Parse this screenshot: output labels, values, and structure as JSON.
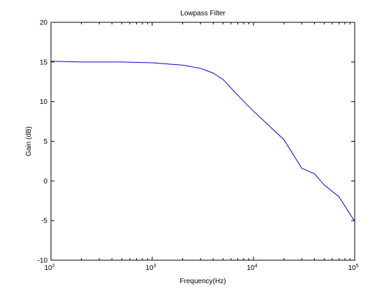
{
  "chart_data": {
    "type": "line",
    "title": "Lowpass Filter",
    "xlabel": "Frequency(Hz)",
    "ylabel": "Gain (dB)",
    "xscale": "log",
    "xlim": [
      100,
      100000
    ],
    "ylim": [
      -10,
      20
    ],
    "grid": false,
    "x_ticks": [
      {
        "value": 100,
        "base": "10",
        "exp": "2"
      },
      {
        "value": 1000,
        "base": "10",
        "exp": "3"
      },
      {
        "value": 10000,
        "base": "10",
        "exp": "4"
      },
      {
        "value": 100000,
        "base": "10",
        "exp": "5"
      }
    ],
    "y_ticks": [
      {
        "value": -10,
        "label": "-10"
      },
      {
        "value": -5,
        "label": "-5"
      },
      {
        "value": 0,
        "label": "0"
      },
      {
        "value": 5,
        "label": "5"
      },
      {
        "value": 10,
        "label": "10"
      },
      {
        "value": 15,
        "label": "15"
      },
      {
        "value": 20,
        "label": "20"
      }
    ],
    "series": [
      {
        "color": "#0000cc",
        "x": [
          100,
          200,
          500,
          1000,
          2000,
          3000,
          4000,
          5000,
          7000,
          10000,
          20000,
          30000,
          40000,
          50000,
          70000,
          100000
        ],
        "y": [
          15.1,
          15.0,
          15.0,
          14.9,
          14.6,
          14.2,
          13.6,
          12.8,
          10.8,
          8.8,
          5.2,
          1.6,
          0.9,
          -0.5,
          -2.0,
          -5.1
        ]
      }
    ]
  }
}
